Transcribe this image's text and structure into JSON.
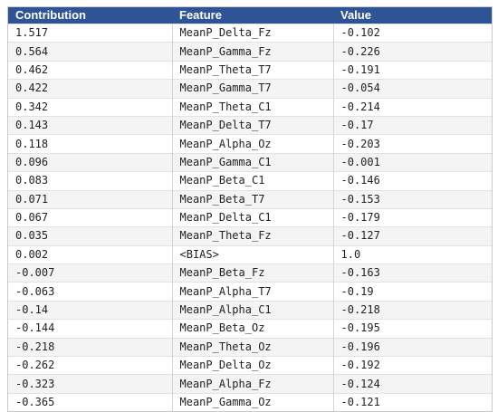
{
  "table": {
    "headers": [
      "Contribution",
      "Feature",
      "Value"
    ],
    "rows": [
      [
        "1.517",
        "MeanP_Delta_Fz",
        "-0.102"
      ],
      [
        "0.564",
        "MeanP_Gamma_Fz",
        "-0.226"
      ],
      [
        "0.462",
        "MeanP_Theta_T7",
        "-0.191"
      ],
      [
        "0.422",
        "MeanP_Gamma_T7",
        "-0.054"
      ],
      [
        "0.342",
        "MeanP_Theta_C1",
        "-0.214"
      ],
      [
        "0.143",
        "MeanP_Delta_T7",
        "-0.17"
      ],
      [
        "0.118",
        "MeanP_Alpha_Oz",
        "-0.203"
      ],
      [
        "0.096",
        "MeanP_Gamma_C1",
        "-0.001"
      ],
      [
        "0.083",
        "MeanP_Beta_C1",
        "-0.146"
      ],
      [
        "0.071",
        "MeanP_Beta_T7",
        "-0.153"
      ],
      [
        "0.067",
        "MeanP_Delta_C1",
        "-0.179"
      ],
      [
        "0.035",
        "MeanP_Theta_Fz",
        "-0.127"
      ],
      [
        "0.002",
        "<BIAS>",
        "1.0"
      ],
      [
        "-0.007",
        "MeanP_Beta_Fz",
        "-0.163"
      ],
      [
        "-0.063",
        "MeanP_Alpha_T7",
        "-0.19"
      ],
      [
        "-0.14",
        "MeanP_Alpha_C1",
        "-0.218"
      ],
      [
        "-0.144",
        "MeanP_Beta_Oz",
        "-0.195"
      ],
      [
        "-0.218",
        "MeanP_Theta_Oz",
        "-0.196"
      ],
      [
        "-0.262",
        "MeanP_Delta_Oz",
        "-0.192"
      ],
      [
        "-0.323",
        "MeanP_Alpha_Fz",
        "-0.124"
      ],
      [
        "-0.365",
        "MeanP_Gamma_Oz",
        "-0.121"
      ]
    ]
  },
  "colors": {
    "header_bg": "#2f5496",
    "header_text": "#ffffff",
    "row_alt_bg": "#f4f4f4",
    "grid": "#d4d4d4"
  }
}
